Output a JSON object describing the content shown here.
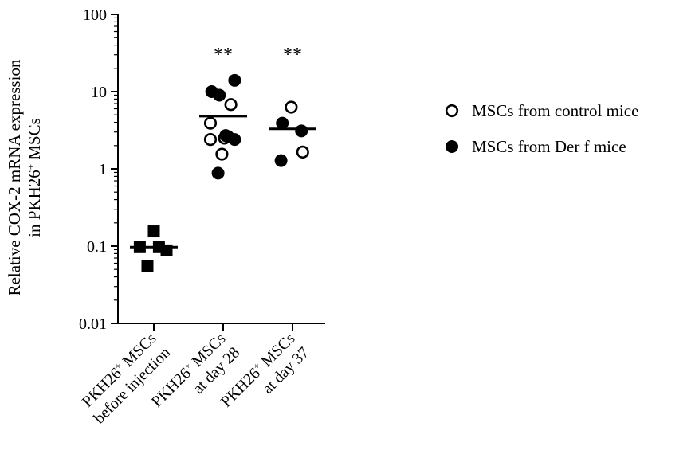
{
  "chart_data": {
    "type": "scatter",
    "yscale": "log",
    "ylim": [
      0.01,
      100
    ],
    "y_ticks": [
      "0.01",
      "0.1",
      "1",
      "10",
      "100"
    ],
    "ylabel_line1": "Relative COX-2 mRNA expression",
    "ylabel_line2_pre": "in PKH26",
    "ylabel_line2_sup": "+",
    "ylabel_line2_post": " MSCs",
    "categories": [
      {
        "line1_pre": "PKH26",
        "line1_sup": "+",
        "line1_post": " MSCs",
        "line2": "before injection"
      },
      {
        "line1_pre": "PKH26",
        "line1_sup": "+",
        "line1_post": " MSCs",
        "line2": "at day 28"
      },
      {
        "line1_pre": "PKH26",
        "line1_sup": "+",
        "line1_post": " MSCs",
        "line2": "at day 37"
      }
    ],
    "significance": [
      "",
      "**",
      "**"
    ],
    "means": [
      0.097,
      4.8,
      3.3
    ],
    "series": [
      {
        "name": "",
        "marker": "square-filled",
        "points": [
          {
            "cat": 0,
            "y": 0.097,
            "jitter": -0.55
          },
          {
            "cat": 0,
            "y": 0.155,
            "jitter": 0.0
          },
          {
            "cat": 0,
            "y": 0.097,
            "jitter": 0.2
          },
          {
            "cat": 0,
            "y": 0.088,
            "jitter": 0.5
          },
          {
            "cat": 0,
            "y": 0.055,
            "jitter": -0.25
          }
        ]
      },
      {
        "name": "MSCs from control mice",
        "marker": "circle-open",
        "points": [
          {
            "cat": 1,
            "y": 6.8,
            "jitter": 0.3
          },
          {
            "cat": 1,
            "y": 3.9,
            "jitter": -0.5
          },
          {
            "cat": 1,
            "y": 2.5,
            "jitter": 0.05
          },
          {
            "cat": 1,
            "y": 2.4,
            "jitter": -0.5
          },
          {
            "cat": 1,
            "y": 1.55,
            "jitter": -0.05
          },
          {
            "cat": 2,
            "y": 6.3,
            "jitter": -0.05
          },
          {
            "cat": 2,
            "y": 1.65,
            "jitter": 0.4
          }
        ]
      },
      {
        "name": "MSCs from Der f mice",
        "marker": "circle-filled",
        "points": [
          {
            "cat": 1,
            "y": 14.0,
            "jitter": 0.45
          },
          {
            "cat": 1,
            "y": 10.0,
            "jitter": -0.45
          },
          {
            "cat": 1,
            "y": 9.0,
            "jitter": -0.15
          },
          {
            "cat": 1,
            "y": 2.7,
            "jitter": 0.1
          },
          {
            "cat": 1,
            "y": 2.6,
            "jitter": 0.2
          },
          {
            "cat": 1,
            "y": 2.4,
            "jitter": 0.45
          },
          {
            "cat": 1,
            "y": 0.88,
            "jitter": -0.2
          },
          {
            "cat": 2,
            "y": 3.9,
            "jitter": -0.4
          },
          {
            "cat": 2,
            "y": 3.1,
            "jitter": 0.35
          },
          {
            "cat": 2,
            "y": 1.28,
            "jitter": -0.45
          }
        ]
      }
    ],
    "legend": [
      {
        "label": "MSCs from control mice",
        "marker": "circle-open"
      },
      {
        "label": "MSCs from Der f mice",
        "marker": "circle-filled"
      }
    ],
    "legend_position": "right",
    "grid": false
  }
}
